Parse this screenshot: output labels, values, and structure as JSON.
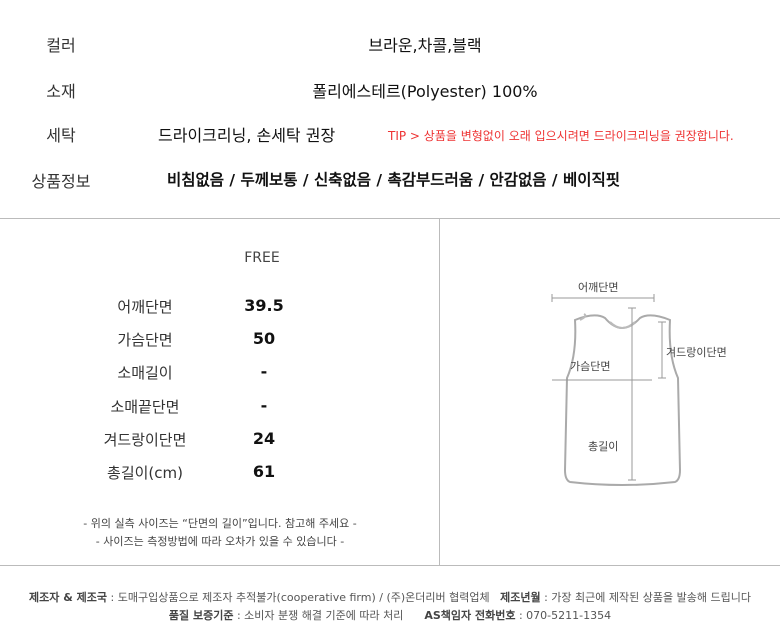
{
  "info": [
    {
      "label": "컬러",
      "value": "브라운,차콜,블랙"
    },
    {
      "label": "소재",
      "value": "폴리에스테르(Polyester) 100%"
    },
    {
      "label": "세탁",
      "value": "드라이크리닝, 손세탁 권장",
      "tip": "TIP > 상품을 변형없이 오래 입으시려면 드라이크리닝을 권장합니다."
    },
    {
      "label": "상품정보",
      "value": "비침없음 / 두께보통 / 신축없음 / 촉감부드러움 / 안감없음 / 베이직핏"
    }
  ],
  "size_table": {
    "header": "FREE",
    "rows": [
      {
        "label": "어깨단면",
        "value": "39.5"
      },
      {
        "label": "가슴단면",
        "value": "50"
      },
      {
        "label": "소매길이",
        "value": "-"
      },
      {
        "label": "소매끝단면",
        "value": "-"
      },
      {
        "label": "겨드랑이단면",
        "value": "24"
      },
      {
        "label": "총길이(cm)",
        "value": "61"
      }
    ],
    "notes": [
      "- 위의 실측 사이즈는 “단면의 길이”입니다. 참고해 주세요 -",
      "- 사이즈는 측정방법에 따라 오차가 있을 수 있습니다 -"
    ]
  },
  "diagram": {
    "shoulder": "어깨단면",
    "armpit": "겨드랑이단면",
    "chest": "가슴단면",
    "length": "총길이"
  },
  "footer": {
    "maker_label": "제조자 & 제조국",
    "maker_value": " : 도매구입상품으로 제조자 추적불가(cooperative firm) / (주)온더리버 협력업체",
    "year_label": "제조년월",
    "year_value": " : 가장 최근에 제작된 상품을 발송해 드립니다",
    "quality_label": "품질 보증기준",
    "quality_value": " : 소비자 분쟁 해결 기준에 따라 처리",
    "as_label": "AS책임자 전화번호",
    "as_value": " : 070-5211-1354"
  }
}
